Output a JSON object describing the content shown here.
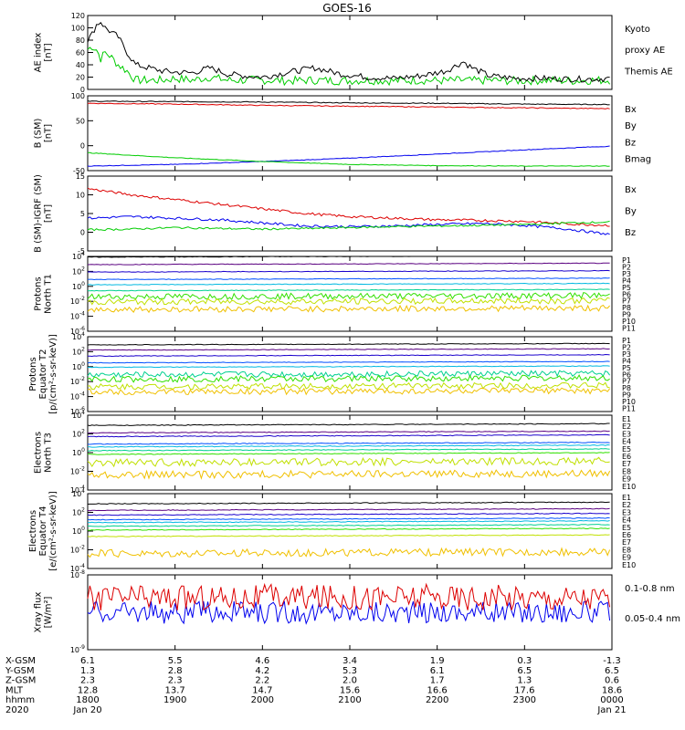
{
  "title": "GOES-16",
  "colors": {
    "black": "#000000",
    "green": "#00cc00",
    "blue": "#0000ee",
    "red": "#dd0000",
    "ch": [
      "#000000",
      "#5a0080",
      "#1a00cc",
      "#0050ff",
      "#00b8e0",
      "#00d090",
      "#30e000",
      "#c0e000",
      "#f0c000",
      "#ff6000",
      "#dd0000"
    ]
  },
  "panels": [
    {
      "id": "ae",
      "ylabel": [
        "AE index",
        "[nT]"
      ],
      "ticks": [
        "0",
        "20",
        "40",
        "60",
        "80",
        "100",
        "120"
      ],
      "legend": [
        {
          "text": "Kyoto",
          "color": "#00cc00"
        },
        {
          "text": "proxy AE",
          "color": "#00cc00"
        },
        {
          "text": "Themis AE",
          "color": "#000000"
        }
      ]
    },
    {
      "id": "bsm",
      "ylabel": [
        "B (SM)",
        "[nT]"
      ],
      "ticks": [
        "-50",
        "0",
        "50",
        "100"
      ],
      "legend": [
        {
          "text": "Bx",
          "color": "#0000ee"
        },
        {
          "text": "By",
          "color": "#00cc00"
        },
        {
          "text": "Bz",
          "color": "#dd0000"
        },
        {
          "text": "Bmag",
          "color": "#000000"
        }
      ]
    },
    {
      "id": "digrf",
      "ylabel": [
        "B (SM)-IGRF (SM)",
        "[nT]"
      ],
      "ticks": [
        "-5",
        "0",
        "5",
        "10",
        "15"
      ],
      "legend": [
        {
          "text": "Bx",
          "color": "#0000ee"
        },
        {
          "text": "By",
          "color": "#00cc00"
        },
        {
          "text": "Bz",
          "color": "#dd0000"
        }
      ]
    },
    {
      "id": "pn",
      "ylabel": [
        "Protons",
        "North T1"
      ],
      "ticks": [
        "10^-6",
        "10^-4",
        "10^-2",
        "10^0",
        "10^2",
        "10^4"
      ],
      "legend": [
        "P1",
        "P2",
        "P3",
        "P4",
        "P5",
        "P6",
        "P7",
        "P8",
        "P9",
        "P10",
        "P11"
      ]
    },
    {
      "id": "pe",
      "ylabel": [
        "Protons",
        "Equator T2",
        "[p/(cm²-s-sr-keV)]"
      ],
      "ticks": [
        "10^-6",
        "10^-4",
        "10^-2",
        "10^0",
        "10^2",
        "10^4"
      ],
      "legend": [
        "P1",
        "P2",
        "P3",
        "P4",
        "P5",
        "P6",
        "P7",
        "P8",
        "P9",
        "P10",
        "P11"
      ]
    },
    {
      "id": "en",
      "ylabel": [
        "Electrons",
        "North T3"
      ],
      "ticks": [
        "10^-4",
        "10^-2",
        "10^0",
        "10^2",
        "10^4"
      ],
      "legend": [
        "E1",
        "E2",
        "E3",
        "E4",
        "E5",
        "E6",
        "E7",
        "E8",
        "E9",
        "E10"
      ]
    },
    {
      "id": "ee",
      "ylabel": [
        "Electrons",
        "Equator T4",
        "[e/(cm²-s-sr-keV)]"
      ],
      "ticks": [
        "10^-4",
        "10^-2",
        "10^0",
        "10^2",
        "10^4"
      ],
      "legend": [
        "E1",
        "E2",
        "E3",
        "E4",
        "E5",
        "E6",
        "E7",
        "E8",
        "E9",
        "E10"
      ]
    },
    {
      "id": "xray",
      "ylabel": [
        "Xray flux",
        "[W/m²]"
      ],
      "ticks": [
        "10^-9",
        "10^-8"
      ],
      "legend": [
        {
          "text": "0.1-0.8 nm",
          "color": "#dd0000"
        },
        {
          "text": "0.05-0.4 nm",
          "color": "#0000ee"
        }
      ]
    }
  ],
  "chart_data": {
    "type": "line",
    "title": "GOES-16",
    "x": [
      "1800",
      "1900",
      "2000",
      "2100",
      "2200",
      "2300",
      "0000"
    ],
    "ephemeris": [
      {
        "label": "X-GSM",
        "values": [
          "6.1",
          "5.5",
          "4.6",
          "3.4",
          "1.9",
          "0.3",
          "-1.3"
        ]
      },
      {
        "label": "Y-GSM",
        "values": [
          "1.3",
          "2.8",
          "4.2",
          "5.3",
          "6.1",
          "6.5",
          "6.5"
        ]
      },
      {
        "label": "Z-GSM",
        "values": [
          "2.3",
          "2.3",
          "2.2",
          "2.0",
          "1.7",
          "1.3",
          "0.6"
        ]
      },
      {
        "label": "MLT",
        "values": [
          "12.8",
          "13.7",
          "14.7",
          "15.6",
          "16.6",
          "17.6",
          "18.6"
        ]
      },
      {
        "label": "hhmm",
        "values": [
          "1800",
          "1900",
          "2000",
          "2100",
          "2200",
          "2300",
          "0000"
        ]
      },
      {
        "label": "2020",
        "values": [
          "Jan 20",
          "",
          "",
          "",
          "",
          "",
          "Jan 21"
        ]
      }
    ],
    "series": {
      "ae_themis": [
        [
          0,
          80
        ],
        [
          0.05,
          90
        ],
        [
          0.1,
          105
        ],
        [
          0.15,
          110
        ],
        [
          0.2,
          100
        ],
        [
          0.25,
          95
        ],
        [
          0.35,
          85
        ],
        [
          0.45,
          60
        ],
        [
          0.55,
          40
        ],
        [
          0.7,
          35
        ],
        [
          0.85,
          30
        ],
        [
          1.0,
          28
        ],
        [
          1.2,
          27
        ],
        [
          1.4,
          35
        ],
        [
          1.6,
          25
        ],
        [
          1.8,
          22
        ],
        [
          2.0,
          20
        ],
        [
          2.3,
          28
        ],
        [
          2.6,
          35
        ],
        [
          2.9,
          25
        ],
        [
          3.2,
          20
        ],
        [
          3.5,
          18
        ],
        [
          3.8,
          22
        ],
        [
          4.1,
          30
        ],
        [
          4.3,
          45
        ],
        [
          4.4,
          35
        ],
        [
          4.6,
          22
        ],
        [
          4.9,
          18
        ],
        [
          5.2,
          18
        ],
        [
          5.5,
          17
        ],
        [
          5.8,
          17
        ],
        [
          6.0,
          18
        ]
      ],
      "ae_kyoto": [
        [
          0,
          65
        ],
        [
          0.05,
          70
        ],
        [
          0.1,
          65
        ],
        [
          0.15,
          50
        ],
        [
          0.2,
          60
        ],
        [
          0.25,
          55
        ],
        [
          0.35,
          40
        ],
        [
          0.45,
          30
        ],
        [
          0.55,
          15
        ],
        [
          0.7,
          15
        ],
        [
          0.85,
          15
        ],
        [
          1.0,
          18
        ],
        [
          1.2,
          15
        ],
        [
          1.4,
          20
        ],
        [
          1.6,
          15
        ],
        [
          1.8,
          15
        ],
        [
          2.0,
          15
        ],
        [
          2.3,
          14
        ],
        [
          2.6,
          15
        ],
        [
          2.9,
          14
        ],
        [
          3.2,
          15
        ],
        [
          3.5,
          14
        ],
        [
          3.8,
          15
        ],
        [
          4.1,
          14
        ],
        [
          4.3,
          15
        ],
        [
          4.4,
          14
        ],
        [
          4.6,
          15
        ],
        [
          4.9,
          14
        ],
        [
          5.2,
          15
        ],
        [
          5.5,
          14
        ],
        [
          5.8,
          15
        ],
        [
          6.0,
          15
        ]
      ],
      "bsm_bz": [
        [
          0,
          107
        ],
        [
          1,
          105
        ],
        [
          2,
          102
        ],
        [
          3,
          100
        ],
        [
          4,
          98
        ],
        [
          5,
          96
        ],
        [
          6,
          94
        ]
      ],
      "bsm_bmag": [
        [
          0,
          112
        ],
        [
          1,
          111
        ],
        [
          2,
          110
        ],
        [
          3,
          108
        ],
        [
          4,
          107
        ],
        [
          5,
          105
        ],
        [
          6,
          104
        ]
      ],
      "bsm_bx": [
        [
          0,
          -44
        ],
        [
          1,
          -40
        ],
        [
          2,
          -33
        ],
        [
          3,
          -25
        ],
        [
          4,
          -15
        ],
        [
          5,
          -5
        ],
        [
          6,
          4
        ]
      ],
      "bsm_by": [
        [
          0,
          -12
        ],
        [
          1,
          -24
        ],
        [
          2,
          -33
        ],
        [
          3,
          -40
        ],
        [
          4,
          -43
        ],
        [
          5,
          -44
        ],
        [
          6,
          -44
        ]
      ],
      "dig_bz": [
        [
          0,
          13.0
        ],
        [
          0.5,
          11.0
        ],
        [
          1,
          9.5
        ],
        [
          1.5,
          8.0
        ],
        [
          2,
          6.5
        ],
        [
          2.5,
          5.0
        ],
        [
          3,
          4.0
        ],
        [
          3.5,
          3.5
        ],
        [
          4,
          3.0
        ],
        [
          4.5,
          2.8
        ],
        [
          5,
          2.5
        ],
        [
          5.5,
          1.7
        ],
        [
          6,
          1.2
        ]
      ],
      "dig_bx": [
        [
          0,
          3.5
        ],
        [
          0.5,
          4.0
        ],
        [
          1,
          3.5
        ],
        [
          1.5,
          3.0
        ],
        [
          2,
          2.0
        ],
        [
          2.5,
          1.0
        ],
        [
          3,
          0.8
        ],
        [
          3.5,
          1.0
        ],
        [
          4,
          1.5
        ],
        [
          4.5,
          1.8
        ],
        [
          5,
          1.2
        ],
        [
          5.5,
          0
        ],
        [
          6,
          -1.8
        ]
      ],
      "dig_by": [
        [
          0,
          -0.2
        ],
        [
          0.5,
          0.0
        ],
        [
          1,
          0.5
        ],
        [
          1.5,
          0.2
        ],
        [
          2,
          0.0
        ],
        [
          2.5,
          0.2
        ],
        [
          3,
          0.5
        ],
        [
          3.5,
          0.8
        ],
        [
          4,
          1.0
        ],
        [
          4.5,
          1.2
        ],
        [
          5,
          1.5
        ],
        [
          5.5,
          2.0
        ],
        [
          6,
          2.3
        ]
      ],
      "pn_levels": [
        4.0,
        3.0,
        2.0,
        1.0,
        0.3,
        -0.5,
        -1.3,
        -2.0,
        -3.0,
        null,
        null
      ],
      "pe_levels": [
        3.0,
        2.3,
        1.5,
        0.6,
        0.0,
        -1.0,
        -1.6,
        -2.6,
        -3.3,
        null,
        null
      ],
      "en_levels": [
        3.0,
        2.2,
        1.8,
        1.0,
        0.7,
        0.3,
        -0.1,
        -1.0,
        -2.3,
        null
      ],
      "ee_levels": [
        3.0,
        2.3,
        1.8,
        1.3,
        1.0,
        0.6,
        0.2,
        -0.5,
        -2.3,
        null
      ],
      "xray_long_level": -8.3,
      "xray_short_level": -8.5
    }
  }
}
